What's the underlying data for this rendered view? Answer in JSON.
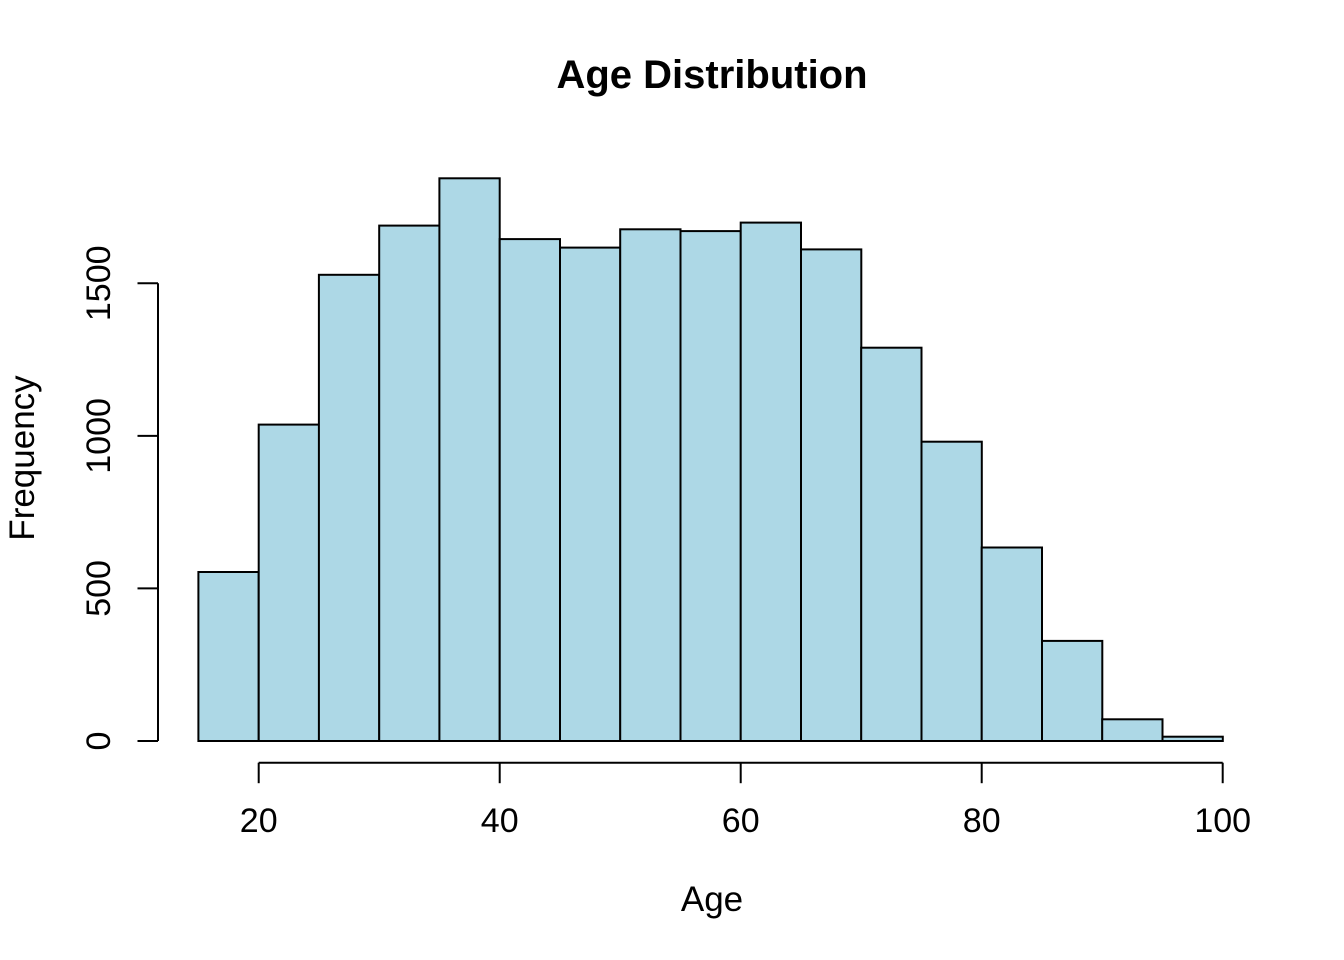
{
  "chart_data": {
    "type": "bar",
    "subtype": "histogram",
    "title": "Age Distribution",
    "xlabel": "Age",
    "ylabel": "Frequency",
    "bin_width": 5,
    "bin_edges": [
      15,
      20,
      25,
      30,
      35,
      40,
      45,
      50,
      55,
      60,
      65,
      70,
      75,
      80,
      85,
      90,
      95,
      100
    ],
    "categories": [
      "15-20",
      "20-25",
      "25-30",
      "30-35",
      "35-40",
      "40-45",
      "45-50",
      "50-55",
      "55-60",
      "60-65",
      "65-70",
      "70-75",
      "75-80",
      "80-85",
      "85-90",
      "90-95",
      "95-100"
    ],
    "values": [
      554,
      1037,
      1528,
      1689,
      1844,
      1645,
      1617,
      1677,
      1671,
      1699,
      1611,
      1289,
      981,
      634,
      328,
      71,
      14
    ],
    "x_ticks": [
      20,
      40,
      60,
      80,
      100
    ],
    "y_ticks": [
      0,
      500,
      1000,
      1500
    ],
    "xlim": [
      15,
      100
    ],
    "ylim": [
      0,
      1844
    ],
    "grid": false,
    "legend": "none",
    "y_tick_labels_rotated": true,
    "colors": {
      "bar_fill": "#ADD8E6",
      "bar_stroke": "#000000",
      "axis": "#000000",
      "text": "#000000",
      "background": "#FFFFFF"
    }
  }
}
